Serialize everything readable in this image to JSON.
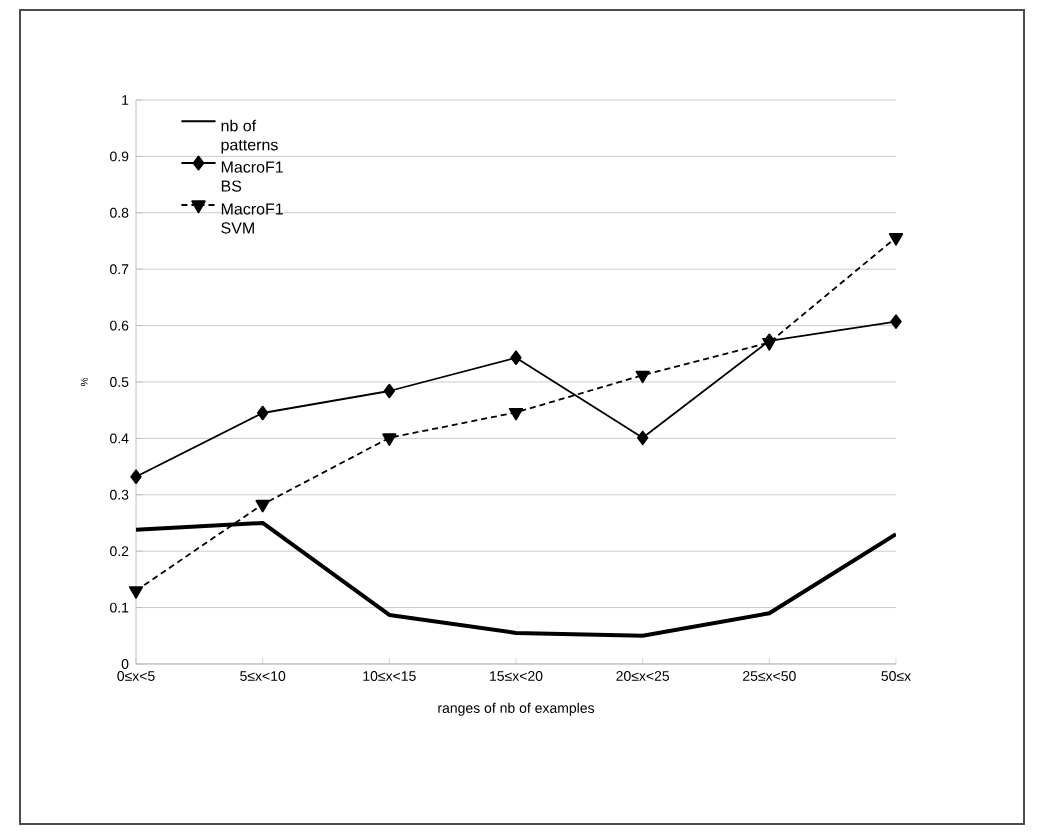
{
  "chart_data": {
    "type": "line",
    "xlabel": "ranges of nb of examples",
    "ylabel": "%",
    "categories": [
      "0≤x<5",
      "5≤x<10",
      "10≤x<15",
      "15≤x<20",
      "20≤x<25",
      "25≤x<50",
      "50≤x"
    ],
    "series": [
      {
        "name": "nb of patterns",
        "color": "#000000",
        "marker": "none",
        "line_style": "solid",
        "values": [
          0.238,
          0.25,
          0.087,
          0.055,
          0.05,
          0.09,
          0.23
        ]
      },
      {
        "name": "MacroF1 BS",
        "color": "#000000",
        "marker": "diamond",
        "line_style": "solid",
        "values": [
          0.332,
          0.445,
          0.484,
          0.543,
          0.401,
          0.573,
          0.607
        ]
      },
      {
        "name": "MacroF1 SVM",
        "color": "#000000",
        "marker": "triangle",
        "line_style": "dashed",
        "values": [
          0.13,
          0.283,
          0.401,
          0.446,
          0.512,
          0.57,
          0.756
        ]
      }
    ],
    "ylim": [
      0,
      1
    ],
    "yticks": [
      0,
      0.1,
      0.2,
      0.3,
      0.4,
      0.5,
      0.6,
      0.7,
      0.8,
      0.9,
      1
    ],
    "grid": "y",
    "legend": "top left"
  }
}
